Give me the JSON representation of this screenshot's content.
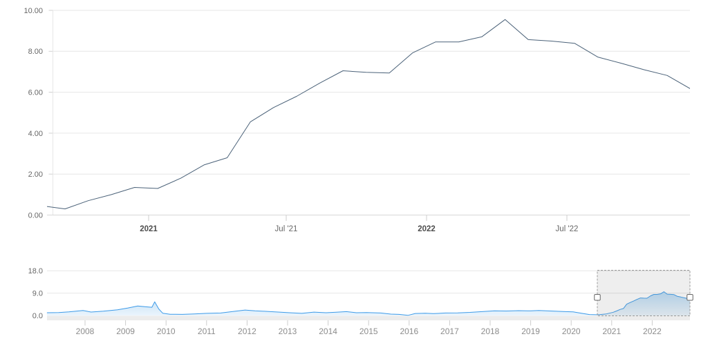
{
  "chart_data": {
    "type": "line",
    "title": "",
    "description_visible": false,
    "main_chart": {
      "type": "line",
      "line_color": "#4a6178",
      "ylabel": "",
      "ylim": [
        0,
        10
      ],
      "y_tick_labels": [
        "0.00",
        "2.00",
        "4.00",
        "6.00",
        "8.00",
        "10.00"
      ],
      "y_tick_values": [
        0,
        2,
        4,
        6,
        8,
        10
      ],
      "x_tick_labels": [
        {
          "text": "2021",
          "bold": true
        },
        {
          "text": "Jul '21",
          "bold": false
        },
        {
          "text": "2022",
          "bold": true
        },
        {
          "text": "Jul '22",
          "bold": false
        }
      ],
      "categories": [
        "Aug 2020",
        "Sep 2020",
        "Oct 2020",
        "Nov 2020",
        "Dec 2020",
        "Jan 2021",
        "Feb 2021",
        "Mar 2021",
        "Apr 2021",
        "May 2021",
        "Jun 2021",
        "Jul 2021",
        "Aug 2021",
        "Sep 2021",
        "Oct 2021",
        "Nov 2021",
        "Dec 2021",
        "Jan 2022",
        "Feb 2022",
        "Mar 2022",
        "Apr 2022",
        "May 2022",
        "Jun 2022",
        "Jul 2022",
        "Aug 2022",
        "Sep 2022",
        "Oct 2022",
        "Nov 2022",
        "Dec 2022"
      ],
      "values": [
        0.45,
        0.3,
        0.7,
        1.0,
        1.35,
        1.3,
        1.8,
        2.45,
        2.8,
        4.55,
        5.25,
        5.8,
        6.45,
        7.05,
        6.97,
        6.94,
        7.92,
        8.46,
        8.46,
        8.71,
        9.55,
        8.57,
        8.5,
        8.39,
        7.72,
        7.42,
        7.1,
        6.82,
        6.17
      ],
      "grid": true,
      "gridline_color": "#e6e6e6"
    },
    "navigator": {
      "type": "area",
      "line_color": "#3c9ae8",
      "fill_top_color": "#8ec4ec",
      "fill_bottom_color": "#eaf4fc",
      "ylim": [
        0,
        18
      ],
      "y_tick_labels": [
        "0.0",
        "9.0",
        "18.0"
      ],
      "y_tick_values": [
        0,
        9,
        18
      ],
      "x_tick_labels": [
        "2008",
        "2009",
        "2010",
        "2011",
        "2012",
        "2013",
        "2014",
        "2015",
        "2016",
        "2017",
        "2018",
        "2019",
        "2020",
        "2021",
        "2022"
      ],
      "points": [
        [
          2007.06,
          1.1
        ],
        [
          2007.35,
          1.2
        ],
        [
          2007.6,
          1.45
        ],
        [
          2007.95,
          2.0
        ],
        [
          2008.15,
          1.4
        ],
        [
          2008.45,
          1.75
        ],
        [
          2008.8,
          2.3
        ],
        [
          2009.05,
          3.0
        ],
        [
          2009.3,
          3.8
        ],
        [
          2009.5,
          3.5
        ],
        [
          2009.65,
          3.3
        ],
        [
          2009.72,
          5.5
        ],
        [
          2009.82,
          2.6
        ],
        [
          2009.92,
          0.9
        ],
        [
          2010.1,
          0.5
        ],
        [
          2010.4,
          0.45
        ],
        [
          2010.7,
          0.65
        ],
        [
          2011.0,
          0.85
        ],
        [
          2011.35,
          1.0
        ],
        [
          2011.7,
          1.7
        ],
        [
          2011.95,
          2.2
        ],
        [
          2012.2,
          1.9
        ],
        [
          2012.5,
          1.65
        ],
        [
          2012.8,
          1.35
        ],
        [
          2013.05,
          1.1
        ],
        [
          2013.35,
          0.85
        ],
        [
          2013.65,
          1.35
        ],
        [
          2013.95,
          1.1
        ],
        [
          2014.2,
          1.3
        ],
        [
          2014.45,
          1.55
        ],
        [
          2014.7,
          1.1
        ],
        [
          2014.95,
          1.2
        ],
        [
          2015.3,
          1.0
        ],
        [
          2015.55,
          0.55
        ],
        [
          2015.75,
          0.45
        ],
        [
          2015.97,
          0.05
        ],
        [
          2016.15,
          0.8
        ],
        [
          2016.4,
          0.9
        ],
        [
          2016.6,
          0.75
        ],
        [
          2016.9,
          1.0
        ],
        [
          2017.2,
          1.05
        ],
        [
          2017.5,
          1.25
        ],
        [
          2017.8,
          1.55
        ],
        [
          2018.1,
          1.85
        ],
        [
          2018.4,
          1.8
        ],
        [
          2018.7,
          1.95
        ],
        [
          2019.0,
          1.85
        ],
        [
          2019.2,
          2.0
        ],
        [
          2019.5,
          1.8
        ],
        [
          2019.8,
          1.6
        ],
        [
          2020.05,
          1.45
        ],
        [
          2020.25,
          0.9
        ],
        [
          2020.45,
          0.4
        ],
        [
          2020.62,
          0.3
        ],
        [
          2020.72,
          0.4
        ],
        [
          2020.87,
          0.65
        ],
        [
          2021.04,
          1.3
        ],
        [
          2021.12,
          1.8
        ],
        [
          2021.21,
          2.45
        ],
        [
          2021.29,
          2.8
        ],
        [
          2021.37,
          4.55
        ],
        [
          2021.46,
          5.25
        ],
        [
          2021.54,
          5.8
        ],
        [
          2021.62,
          6.45
        ],
        [
          2021.71,
          7.05
        ],
        [
          2021.79,
          6.97
        ],
        [
          2021.87,
          6.94
        ],
        [
          2021.96,
          7.92
        ],
        [
          2022.04,
          8.46
        ],
        [
          2022.12,
          8.46
        ],
        [
          2022.21,
          8.71
        ],
        [
          2022.29,
          9.55
        ],
        [
          2022.37,
          8.57
        ],
        [
          2022.46,
          8.5
        ],
        [
          2022.54,
          8.39
        ],
        [
          2022.62,
          7.72
        ],
        [
          2022.71,
          7.42
        ],
        [
          2022.79,
          7.1
        ],
        [
          2022.87,
          6.82
        ],
        [
          2022.93,
          6.2
        ]
      ],
      "selected_range": {
        "start": "Aug 2020",
        "end": "Dec 2022"
      },
      "selection_mask_color": "#777777",
      "selection_border_color": "#999999",
      "handle_fill": "#ffffff",
      "handle_border": "#666666",
      "track_color": "#ececec",
      "grid": true,
      "gridline_color": "#e6e6e6"
    }
  }
}
